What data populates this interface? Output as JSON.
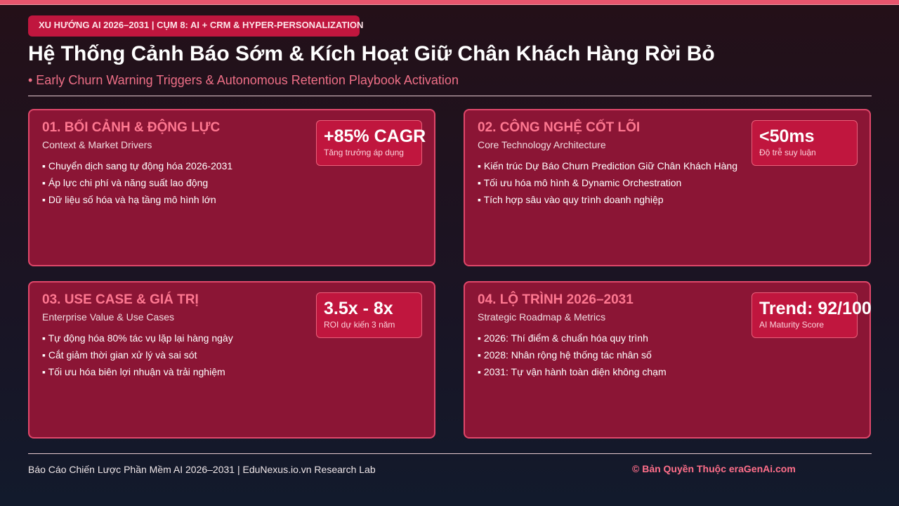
{
  "header": {
    "tag": "XU HƯỚNG AI 2026–2031 | CỤM 8: AI + CRM & HYPER-PERSONALIZATION",
    "title": "Hệ Thống Cảnh Báo Sớm & Kích Hoạt Giữ Chân Khách Hàng Rời Bỏ",
    "subtitle": "• Early Churn Warning Triggers & Autonomous Retention Playbook Activation"
  },
  "cards": [
    {
      "title": "01. BỐI CẢNH & ĐỘNG LỰC",
      "subtitle": "Context & Market Drivers",
      "badge": {
        "value": "+85% CAGR",
        "label": "Tăng trưởng áp dụng"
      },
      "bullets": [
        "Chuyển dịch sang tự động hóa 2026-2031",
        "Áp lực chi phí và năng suất lao động",
        "Dữ liệu số hóa và hạ tầng mô hình lớn"
      ]
    },
    {
      "title": "02. CÔNG NGHỆ CỐT LÕI",
      "subtitle": "Core Technology Architecture",
      "badge": {
        "value": "<50ms",
        "label": "Độ trễ suy luận"
      },
      "bullets": [
        "Kiến trúc Dự Báo Churn Prediction Giữ Chân Khách Hàng",
        "Tối ưu hóa mô hình & Dynamic Orchestration",
        "Tích hợp sâu vào quy trình doanh nghiệp"
      ]
    },
    {
      "title": "03. USE CASE & GIÁ TRỊ",
      "subtitle": "Enterprise Value & Use Cases",
      "badge": {
        "value": "3.5x - 8x",
        "label": "ROI dự kiến 3 năm"
      },
      "bullets": [
        "Tự động hóa 80% tác vụ lặp lại hàng ngày",
        "Cắt giảm thời gian xử lý và sai sót",
        "Tối ưu hóa biên lợi nhuận và trải nghiệm"
      ]
    },
    {
      "title": "04. LỘ TRÌNH 2026–2031",
      "subtitle": "Strategic Roadmap & Metrics",
      "badge": {
        "value": "Trend: 92/100",
        "label": "AI Maturity Score"
      },
      "bullets": [
        "2026: Thí điểm & chuẩn hóa quy trình",
        "2028: Nhân rộng hệ thống tác nhân số",
        "2031: Tự vận hành toàn diện không chạm"
      ]
    }
  ],
  "footer": {
    "left": "Báo Cáo Chiến Lược Phần Mềm AI 2026–2031 | EduNexus.io.vn Research Lab",
    "right": "© Bản Quyền Thuộc eraGenAi.com"
  }
}
